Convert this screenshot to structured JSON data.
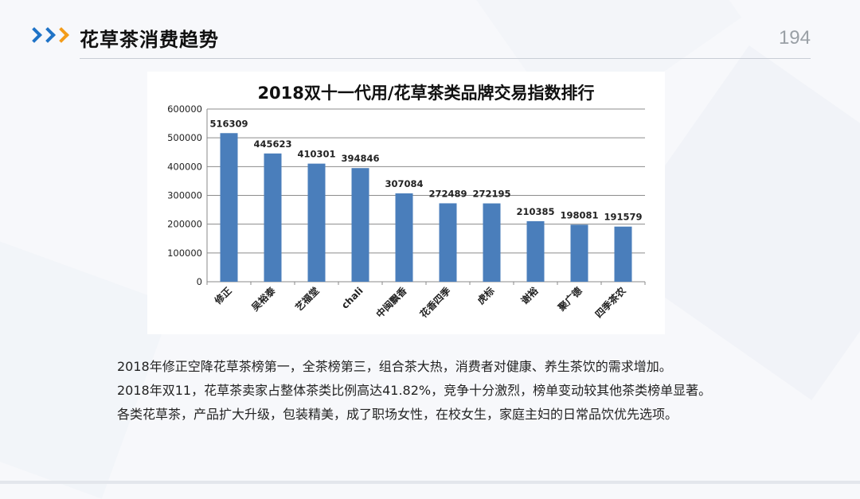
{
  "header": {
    "title": "花草茶消费趋势",
    "page_number": "194"
  },
  "colors": {
    "bar": "#4a7ebb",
    "chevron_primary": "#1f73c7",
    "chevron_accent": "#f39c1a",
    "axis": "#8a8a8a"
  },
  "chart_data": {
    "type": "bar",
    "title": "2018双十一代用/花草茶类品牌交易指数排行",
    "xlabel": "",
    "ylabel": "",
    "ylim": [
      0,
      600000
    ],
    "yticks": [
      "0",
      "100000",
      "200000",
      "300000",
      "400000",
      "500000",
      "600000"
    ],
    "grid": true,
    "categories": [
      "修正",
      "吴裕泰",
      "艺福堂",
      "chali",
      "中闽飘香",
      "花香四季",
      "虎标",
      "谢裕",
      "聚广德",
      "四季茶农"
    ],
    "values": [
      516309,
      445623,
      410301,
      394846,
      307084,
      272489,
      272195,
      210385,
      198081,
      191579
    ],
    "data_labels": [
      "516309",
      "445623",
      "410301",
      "394846",
      "307084",
      "272489",
      "272195",
      "210385",
      "198081",
      "191579"
    ]
  },
  "caption": {
    "line1": "2018年修正空降花草茶榜第一，全茶榜第三，组合茶大热，消费者对健康、养生茶饮的需求增加。",
    "line2": "2018年双11，花草茶卖家占整体茶类比例高达41.82%，竞争十分激烈，榜单变动较其他茶类榜单显著。",
    "line3": "各类花草茶，产品扩大升级，包装精美，成了职场女性，在校女生，家庭主妇的日常品饮优先选项。"
  }
}
